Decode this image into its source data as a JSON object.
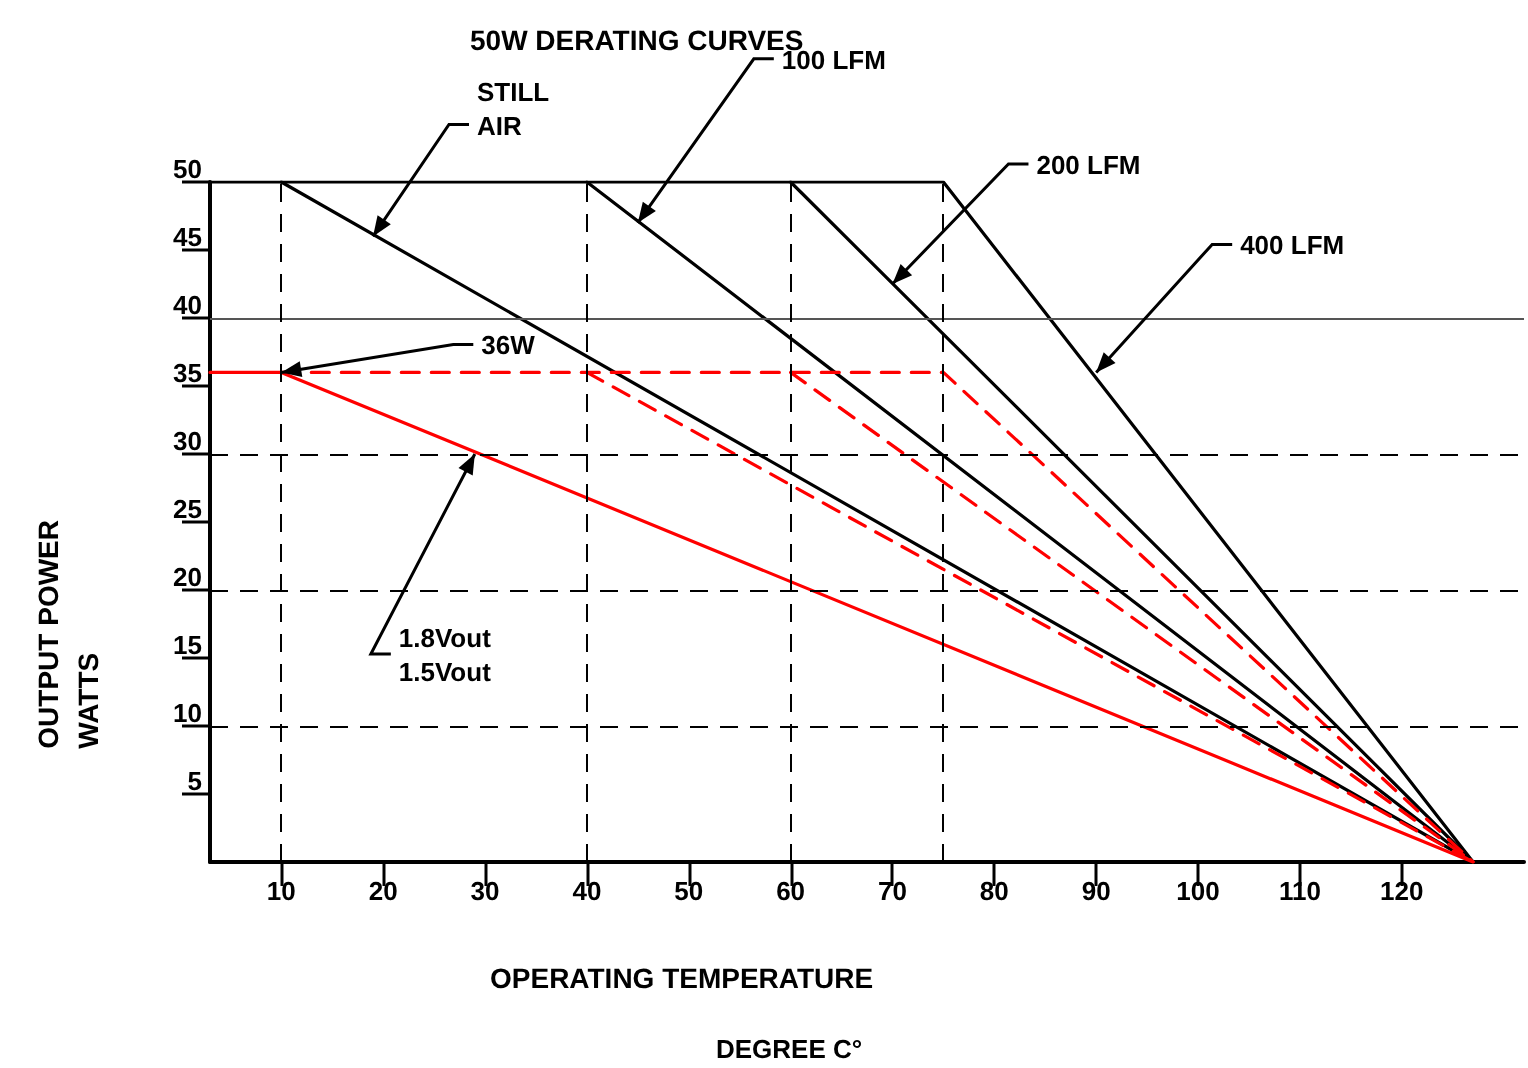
{
  "chart_data": {
    "type": "line",
    "title": "50W DERATING CURVES",
    "xlabel": "OPERATING TEMPERATURE\nDEGREE C°",
    "ylabel": "OUTPUT POWER\nWATTS",
    "xlim": [
      3,
      132
    ],
    "xticks": [
      10,
      20,
      30,
      40,
      50,
      60,
      70,
      80,
      90,
      100,
      110,
      120
    ],
    "ylim": [
      0,
      50
    ],
    "yticks": [
      5,
      10,
      15,
      20,
      25,
      30,
      35,
      40,
      45,
      50
    ],
    "grid": false,
    "marker": "none",
    "series": [
      {
        "color": "#000000",
        "x": [
          3,
          75,
          127
        ],
        "values": [
          50,
          50,
          0
        ]
      },
      {
        "color": "#000000",
        "x": [
          10,
          127
        ],
        "values": [
          50,
          0
        ]
      },
      {
        "color": "#000000",
        "x": [
          40,
          127
        ],
        "values": [
          50,
          0
        ]
      },
      {
        "color": "#000000",
        "x": [
          60,
          127
        ],
        "values": [
          50,
          0
        ]
      },
      {
        "color": "#ff0000",
        "x": [
          3,
          10,
          127
        ],
        "values": [
          36,
          36,
          0
        ]
      },
      {
        "color": "#ff0000",
        "x": [
          10,
          75,
          127
        ],
        "values": [
          36,
          36,
          0
        ],
        "line_style": "dashed"
      },
      {
        "color": "#ff0000",
        "x": [
          40,
          127
        ],
        "values": [
          36,
          0
        ],
        "line_style": "dashed"
      },
      {
        "color": "#ff0000",
        "x": [
          60,
          127
        ],
        "values": [
          36,
          0
        ],
        "line_style": "dashed"
      }
    ],
    "ref_lines": [
      {
        "axis": "y",
        "value": 40,
        "color": "#555555",
        "line_style": "solid"
      },
      {
        "axis": "y",
        "value": 30,
        "color": "#000000",
        "line_style": "dashed"
      },
      {
        "axis": "y",
        "value": 20,
        "color": "#000000",
        "line_style": "dashed"
      },
      {
        "axis": "y",
        "value": 10,
        "color": "#000000",
        "line_style": "dashed"
      },
      {
        "axis": "x",
        "value": 10,
        "color": "#000000",
        "line_style": "dashed"
      },
      {
        "axis": "x",
        "value": 40,
        "color": "#000000",
        "line_style": "dashed"
      },
      {
        "axis": "x",
        "value": 60,
        "color": "#000000",
        "line_style": "dashed"
      },
      {
        "axis": "x",
        "value": 75,
        "color": "#000000",
        "line_style": "dashed"
      }
    ],
    "annotations": [
      {
        "text": "STILL\nAIR",
        "x": 19,
        "y": 46
      },
      {
        "text": "100 LFM",
        "x": 45,
        "y": 47
      },
      {
        "text": "200 LFM",
        "x": 70,
        "y": 42.5
      },
      {
        "text": "400 LFM",
        "x": 90,
        "y": 36
      },
      {
        "text": "36W",
        "x": 10,
        "y": 36
      },
      {
        "text": "1.8Vout\n1.5Vout",
        "x": 29,
        "y": 30
      }
    ]
  }
}
